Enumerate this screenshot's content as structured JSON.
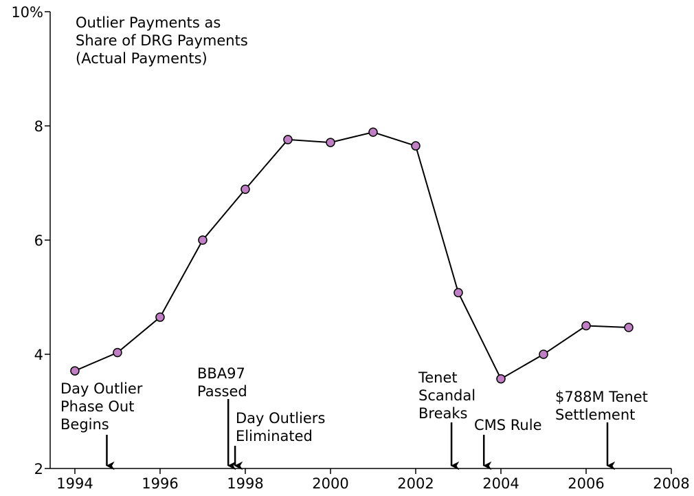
{
  "chart_data": {
    "type": "line",
    "title": [
      "Outlier Payments as",
      "Share of DRG Payments",
      "(Actual Payments)"
    ],
    "x": [
      1994,
      1995,
      1996,
      1997,
      1998,
      1999,
      2000,
      2001,
      2002,
      2003,
      2004,
      2005,
      2006,
      2007
    ],
    "series": [
      {
        "color": "#c07fc4",
        "values": [
          3.71,
          4.03,
          4.65,
          6.0,
          6.89,
          7.76,
          7.71,
          7.89,
          7.65,
          5.08,
          3.57,
          4.0,
          4.5,
          4.47
        ]
      }
    ],
    "xlim": [
      1993.42,
      2008
    ],
    "xticks": [
      1994,
      1996,
      1998,
      2000,
      2002,
      2004,
      2006,
      2008
    ],
    "ylim": [
      2,
      10
    ],
    "yticks": [
      2,
      4,
      6,
      8,
      {
        "value": 10,
        "label": "10%"
      }
    ],
    "annotations": [
      {
        "text": [
          "Day Outlier",
          "Phase Out",
          "Begins"
        ],
        "x": 1994.75
      },
      {
        "text": [
          "BBA97",
          "Passed"
        ],
        "x": 1997.6
      },
      {
        "text": [
          "Day Outliers",
          "Eliminated"
        ],
        "x": 1997.76
      },
      {
        "text": [
          "Tenet",
          "Scandal",
          "Breaks"
        ],
        "x": 2002.84
      },
      {
        "text": [
          "CMS Rule"
        ],
        "x": 2003.6
      },
      {
        "text": [
          "$788M Tenet",
          "Settlement"
        ],
        "x": 2006.5
      }
    ]
  }
}
